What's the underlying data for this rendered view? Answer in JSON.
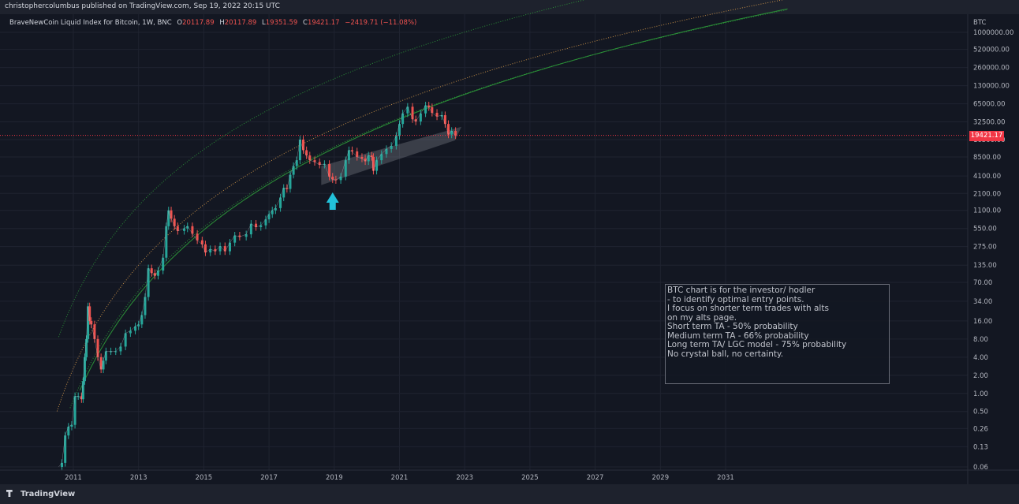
{
  "header": {
    "publisher": "christophercolumbus published on TradingView.com, Sep 19, 2022 20:15 UTC"
  },
  "legend": {
    "symbol": "BraveNewCoin Liquid Index for Bitcoin, 1W, BNC",
    "open_label": "O",
    "open": "20117.89",
    "high_label": "H",
    "high": "20117.89",
    "low_label": "L",
    "low": "19351.59",
    "close_label": "C",
    "close": "19421.17",
    "change": "−2419.71 (−11.08%)"
  },
  "footer": {
    "brand": "TradingView"
  },
  "note": {
    "lines": [
      "BTC chart is for the investor/ hodler",
      "- to identify optimal entry points.",
      "",
      "I focus on shorter term trades with alts",
      "on my alts page.",
      "",
      "Short term TA - 50% probability",
      "Medium term TA - 66% probability",
      "Long term TA/ LGC model - 75% probability",
      "",
      "No crystal ball, no certainty."
    ]
  },
  "colors": {
    "background": "#131722",
    "candle_up": "#26a69a",
    "candle_down": "#ef5350",
    "band_green": "#2e9c3a",
    "band_orange": "#d69a4a",
    "arrow": "#22c1d9",
    "price_line": "#f23645"
  },
  "icons": {
    "arrow": "arrow-up-icon",
    "logo": "tradingview-logo-icon"
  },
  "chart_data": {
    "type": "line",
    "title": "BraveNewCoin Liquid Index for Bitcoin, 1W, BNC",
    "y_axis": {
      "unit": "BTC",
      "scale": "log",
      "ticks": [
        "1000000.00",
        "520000.00",
        "260000.00",
        "130000.00",
        "65000.00",
        "32500.00",
        "16500.00",
        "8500.00",
        "4100.00",
        "2100.00",
        "1100.00",
        "550.00",
        "275.00",
        "135.00",
        "70.00",
        "34.00",
        "16.00",
        "8.00",
        "4.00",
        "2.00",
        "1.00",
        "0.50",
        "0.26",
        "0.13",
        "0.06"
      ]
    },
    "x_axis": {
      "ticks": [
        "2011",
        "2013",
        "2015",
        "2017",
        "2019",
        "2021",
        "2023",
        "2025",
        "2027",
        "2029",
        "2031"
      ],
      "range": [
        2010.5,
        2033.0
      ]
    },
    "current_price": "19421.17",
    "series": [
      {
        "values": [
          [
            2010.55,
            0.06
          ],
          [
            2010.65,
            0.07
          ],
          [
            2010.75,
            0.2
          ],
          [
            2010.85,
            0.28
          ],
          [
            2010.95,
            0.3
          ],
          [
            2011.05,
            0.9
          ],
          [
            2011.15,
            0.9
          ],
          [
            2011.25,
            0.8
          ],
          [
            2011.3,
            1.6
          ],
          [
            2011.35,
            4
          ],
          [
            2011.4,
            8
          ],
          [
            2011.45,
            28
          ],
          [
            2011.5,
            16
          ],
          [
            2011.55,
            14
          ],
          [
            2011.65,
            8
          ],
          [
            2011.75,
            4
          ],
          [
            2011.85,
            2.5
          ],
          [
            2011.92,
            3.5
          ],
          [
            2012.0,
            5
          ],
          [
            2012.15,
            5
          ],
          [
            2012.3,
            5
          ],
          [
            2012.45,
            6
          ],
          [
            2012.6,
            10
          ],
          [
            2012.75,
            11
          ],
          [
            2012.9,
            13
          ],
          [
            2013.0,
            14
          ],
          [
            2013.1,
            20
          ],
          [
            2013.2,
            40
          ],
          [
            2013.3,
            120
          ],
          [
            2013.4,
            100
          ],
          [
            2013.5,
            90
          ],
          [
            2013.6,
            110
          ],
          [
            2013.75,
            180
          ],
          [
            2013.85,
            600
          ],
          [
            2013.92,
            1100
          ],
          [
            2014.0,
            800
          ],
          [
            2014.1,
            600
          ],
          [
            2014.2,
            500
          ],
          [
            2014.4,
            550
          ],
          [
            2014.5,
            600
          ],
          [
            2014.65,
            450
          ],
          [
            2014.8,
            350
          ],
          [
            2014.95,
            300
          ],
          [
            2015.05,
            220
          ],
          [
            2015.2,
            250
          ],
          [
            2015.35,
            230
          ],
          [
            2015.5,
            280
          ],
          [
            2015.65,
            230
          ],
          [
            2015.8,
            320
          ],
          [
            2015.95,
            420
          ],
          [
            2016.1,
            400
          ],
          [
            2016.3,
            440
          ],
          [
            2016.45,
            660
          ],
          [
            2016.6,
            580
          ],
          [
            2016.75,
            620
          ],
          [
            2016.9,
            780
          ],
          [
            2017.0,
            950
          ],
          [
            2017.1,
            1100
          ],
          [
            2017.2,
            1200
          ],
          [
            2017.35,
            1800
          ],
          [
            2017.45,
            2600
          ],
          [
            2017.55,
            2500
          ],
          [
            2017.65,
            4300
          ],
          [
            2017.75,
            6000
          ],
          [
            2017.85,
            7500
          ],
          [
            2017.95,
            16500
          ],
          [
            2018.05,
            11000
          ],
          [
            2018.15,
            9000
          ],
          [
            2018.25,
            7500
          ],
          [
            2018.4,
            7000
          ],
          [
            2018.55,
            6300
          ],
          [
            2018.7,
            6500
          ],
          [
            2018.85,
            4000
          ],
          [
            2018.95,
            3600
          ],
          [
            2019.05,
            3500
          ],
          [
            2019.2,
            4000
          ],
          [
            2019.35,
            7500
          ],
          [
            2019.45,
            11000
          ],
          [
            2019.55,
            10500
          ],
          [
            2019.7,
            8500
          ],
          [
            2019.85,
            8000
          ],
          [
            2019.95,
            7200
          ],
          [
            2020.05,
            9000
          ],
          [
            2020.15,
            8500
          ],
          [
            2020.2,
            5000
          ],
          [
            2020.3,
            7500
          ],
          [
            2020.45,
            9500
          ],
          [
            2020.6,
            11500
          ],
          [
            2020.75,
            13000
          ],
          [
            2020.9,
            19000
          ],
          [
            2021.0,
            30000
          ],
          [
            2021.1,
            45000
          ],
          [
            2021.25,
            58000
          ],
          [
            2021.4,
            36000
          ],
          [
            2021.5,
            33000
          ],
          [
            2021.65,
            45000
          ],
          [
            2021.8,
            61000
          ],
          [
            2021.9,
            57000
          ],
          [
            2022.0,
            46000
          ],
          [
            2022.15,
            40000
          ],
          [
            2022.3,
            42000
          ],
          [
            2022.4,
            30000
          ],
          [
            2022.5,
            20000
          ],
          [
            2022.6,
            23000
          ],
          [
            2022.72,
            19421
          ]
        ]
      }
    ]
  }
}
